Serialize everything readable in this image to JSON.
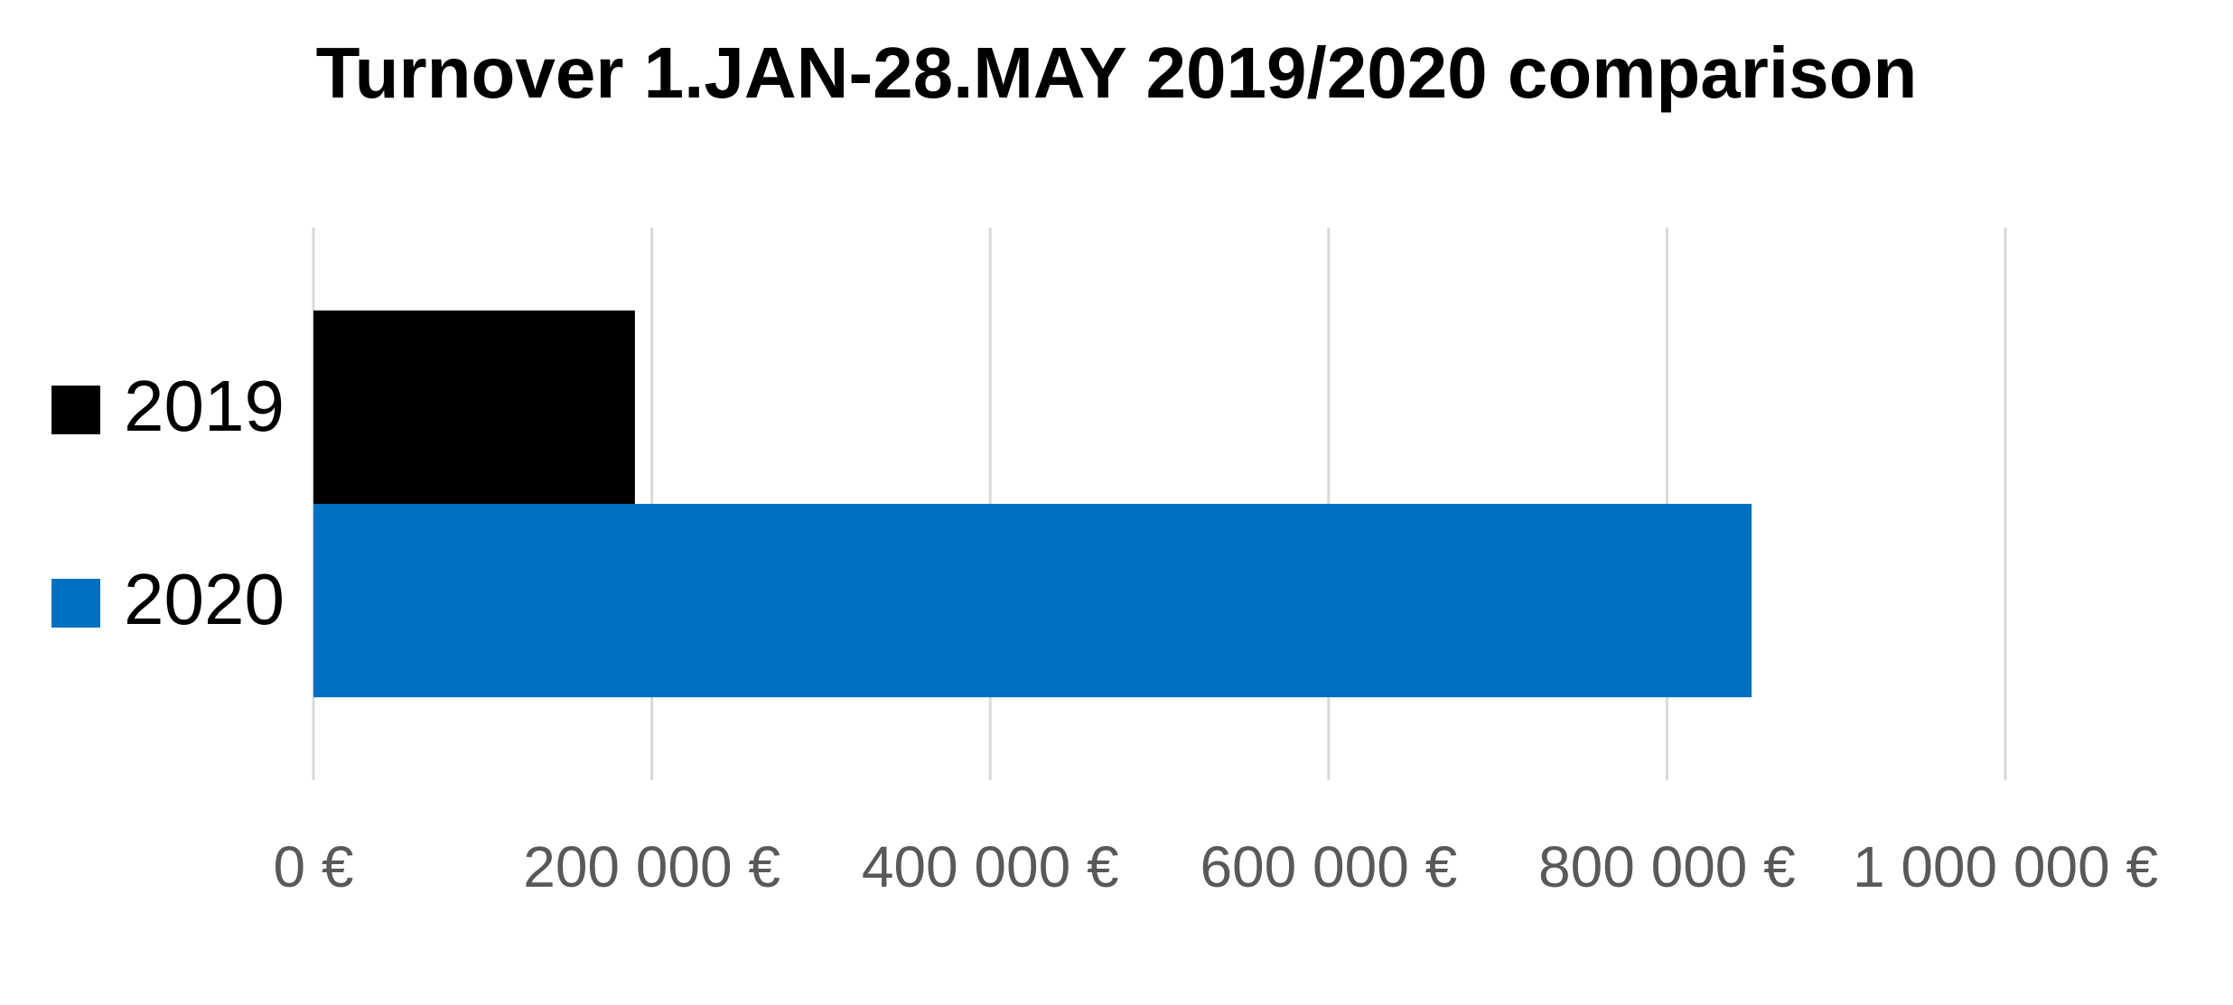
{
  "chart_data": {
    "type": "bar",
    "orientation": "horizontal",
    "title": "Turnover 1.JAN-28.MAY 2019/2020 comparison",
    "categories": [
      null
    ],
    "series": [
      {
        "name": "2019",
        "color": "#000000",
        "values": [
          190000
        ]
      },
      {
        "name": "2020",
        "color": "#0070c0",
        "values": [
          850000
        ]
      }
    ],
    "xlim": [
      0,
      1000000
    ],
    "xticks": [
      {
        "value": 0,
        "label": "0 €"
      },
      {
        "value": 200000,
        "label": "200 000 €"
      },
      {
        "value": 400000,
        "label": "400 000 €"
      },
      {
        "value": 600000,
        "label": "600 000 €"
      },
      {
        "value": 800000,
        "label": "800 000 €"
      },
      {
        "value": 1000000,
        "label": "1 000 000 €"
      }
    ],
    "grid": true,
    "legend": "left"
  }
}
